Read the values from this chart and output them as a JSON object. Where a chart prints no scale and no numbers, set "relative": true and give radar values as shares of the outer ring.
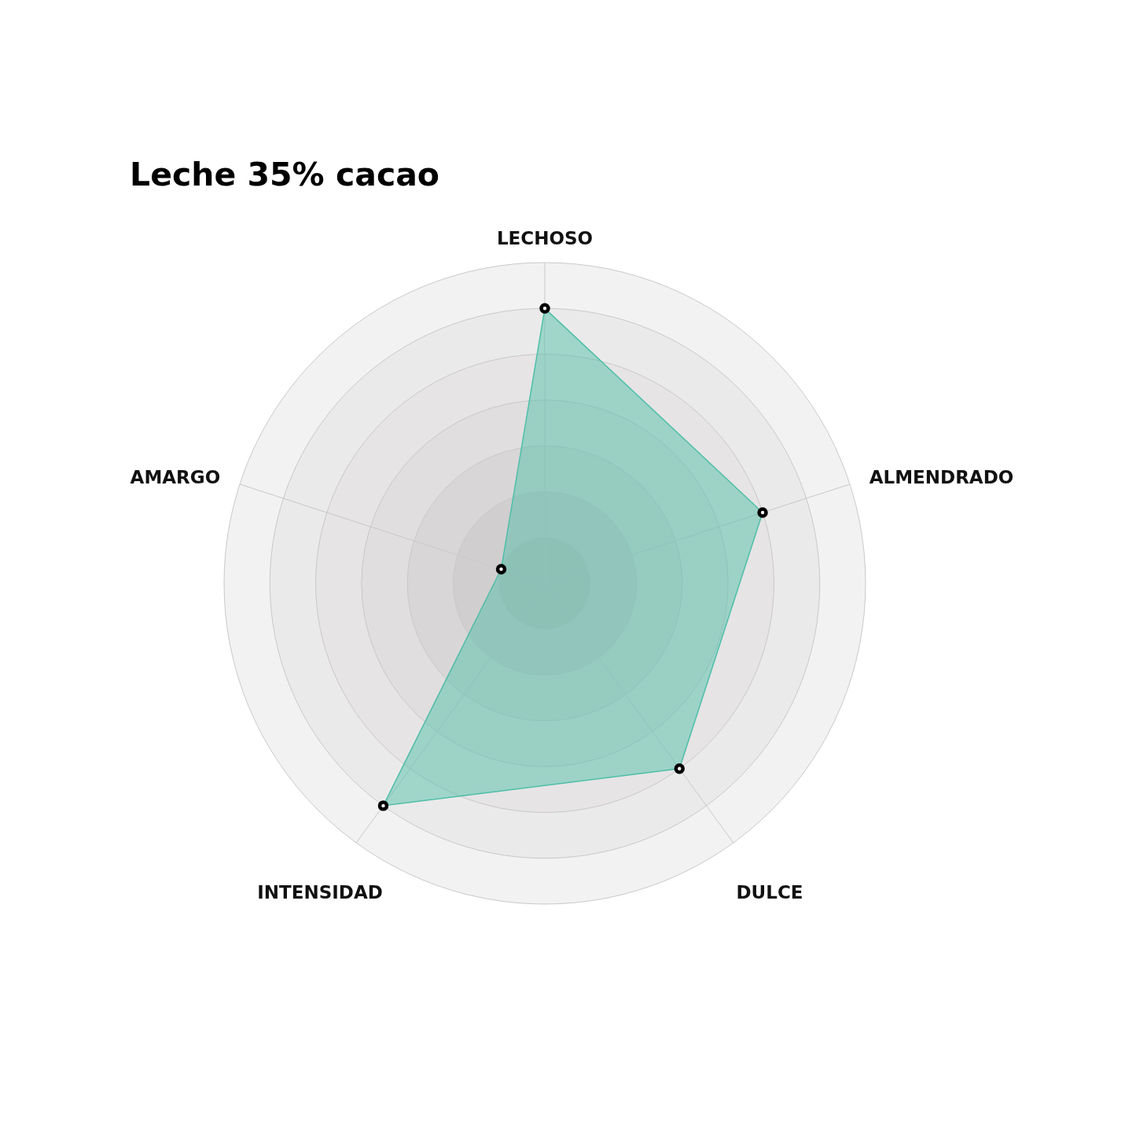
{
  "chart_data": {
    "type": "radar",
    "title": "Leche 35% cacao",
    "categories": [
      "LECHOSO",
      "ALMENDRADO",
      "DULCE",
      "INTENSIDAD",
      "AMARGO"
    ],
    "relative": true,
    "series": [
      {
        "color": "#4dbfa8",
        "values": [
          0.857,
          0.714,
          0.714,
          0.857,
          0.143
        ]
      }
    ],
    "grid": true,
    "marker": "circle"
  }
}
